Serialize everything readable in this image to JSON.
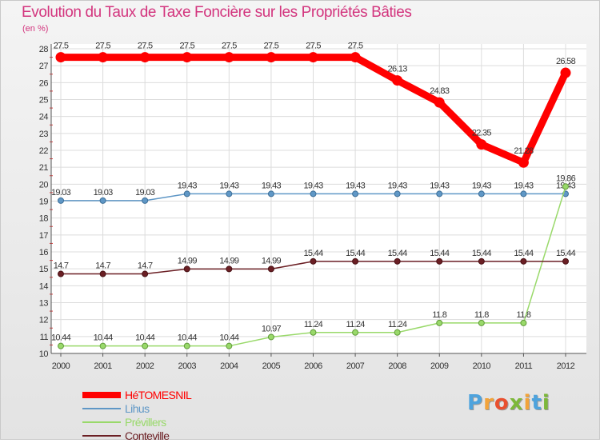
{
  "chart_data": {
    "type": "line",
    "title": "Evolution du Taux de Taxe Foncière sur les Propriétés Bâties",
    "unit_label": "(en %)",
    "x": [
      "2000",
      "2001",
      "2002",
      "2003",
      "2004",
      "2005",
      "2006",
      "2007",
      "2008",
      "2009",
      "2010",
      "2011",
      "2012"
    ],
    "ylim": [
      10,
      28
    ],
    "yticks": [
      10,
      11,
      12,
      13,
      14,
      15,
      16,
      17,
      18,
      19,
      20,
      21,
      22,
      23,
      24,
      25,
      26,
      27,
      28
    ],
    "grid": true,
    "legend_position": "bottom-left",
    "series": [
      {
        "name": "HéTOMESNIL",
        "color": "#ff0000",
        "values": [
          27.5,
          27.5,
          27.5,
          27.5,
          27.5,
          27.5,
          27.5,
          27.5,
          26.13,
          24.83,
          22.35,
          21.28,
          26.58
        ],
        "labels": [
          "27.5",
          "27.5",
          "27.5",
          "27.5",
          "27.5",
          "27.5",
          "27.5",
          "27.5",
          "26.13",
          "24.83",
          "22.35",
          "21.28",
          "26.58"
        ]
      },
      {
        "name": "Lihus",
        "color": "#5f97c6",
        "values": [
          19.03,
          19.03,
          19.03,
          19.43,
          19.43,
          19.43,
          19.43,
          19.43,
          19.43,
          19.43,
          19.43,
          19.43,
          19.43
        ],
        "labels": [
          "19.03",
          "19.03",
          "19.03",
          "19.43",
          "19.43",
          "19.43",
          "19.43",
          "19.43",
          "19.43",
          "19.43",
          "19.43",
          "19.43",
          "19.43"
        ]
      },
      {
        "name": "Prévillers",
        "color": "#99d96a",
        "values": [
          10.44,
          10.44,
          10.44,
          10.44,
          10.44,
          10.97,
          11.24,
          11.24,
          11.24,
          11.8,
          11.8,
          11.8,
          19.86
        ],
        "labels": [
          "10.44",
          "10.44",
          "10.44",
          "10.44",
          "10.44",
          "10.97",
          "11.24",
          "11.24",
          "11.24",
          "11.8",
          "11.8",
          "11.8",
          "19.86"
        ]
      },
      {
        "name": "Conteville",
        "color": "#6b1f24",
        "values": [
          14.7,
          14.7,
          14.7,
          14.99,
          14.99,
          14.99,
          15.44,
          15.44,
          15.44,
          15.44,
          15.44,
          15.44,
          15.44
        ],
        "labels": [
          "14.7",
          "14.7",
          "14.7",
          "14.99",
          "14.99",
          "14.99",
          "15.44",
          "15.44",
          "15.44",
          "15.44",
          "15.44",
          "15.44",
          "15.44"
        ]
      }
    ]
  },
  "logo": {
    "letters": [
      "P",
      "r",
      "o",
      "x",
      "i",
      "t",
      "i"
    ],
    "colors": [
      "#4ea3dd",
      "#f2a33a",
      "#e9502f",
      "#7db83a",
      "#f2a33a",
      "#4ea3dd",
      "#7db83a"
    ]
  }
}
